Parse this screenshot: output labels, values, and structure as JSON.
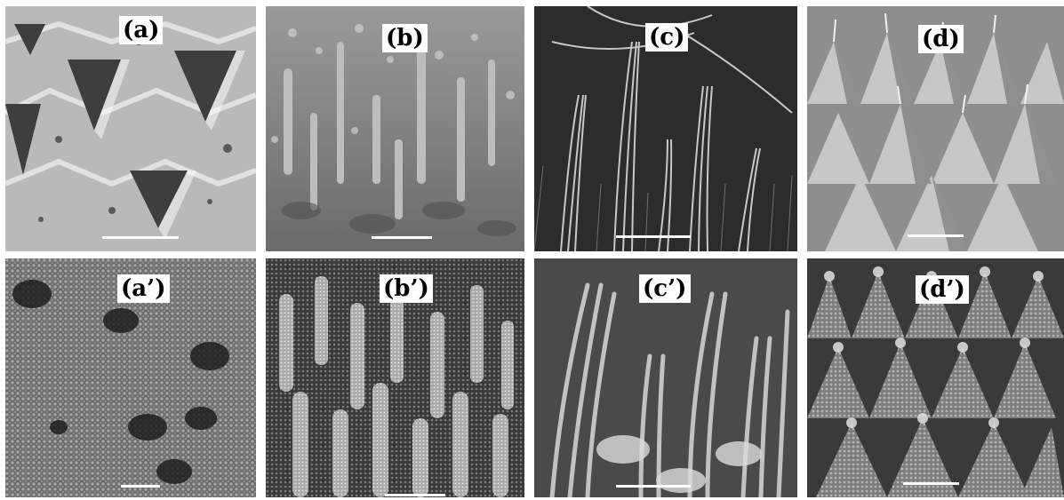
{
  "figure": {
    "panels": [
      {
        "id": "a",
        "label": "(a)",
        "style": "pyramid-pits-smooth"
      },
      {
        "id": "b",
        "label": "(b)",
        "style": "spikes-smooth"
      },
      {
        "id": "c",
        "label": "(c)",
        "style": "nanowire-bundles"
      },
      {
        "id": "d",
        "label": "(d)",
        "style": "pyramids-with-whiskers"
      },
      {
        "id": "a2",
        "label": "(a’)",
        "style": "rough-pits"
      },
      {
        "id": "b2",
        "label": "(b’)",
        "style": "rough-pillars"
      },
      {
        "id": "c2",
        "label": "(c’)",
        "style": "coated-nanowires"
      },
      {
        "id": "d2",
        "label": "(d’)",
        "style": "rough-pyramids"
      }
    ]
  }
}
